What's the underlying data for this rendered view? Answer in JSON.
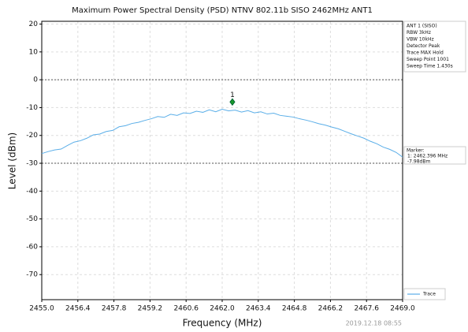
{
  "chart_data": {
    "type": "line",
    "title": "Maximum Power Spectral Density (PSD) NTNV 802.11b SISO 2462MHz ANT1",
    "x_label": "Frequency (MHz)",
    "y_label": "Level (dBm)",
    "xlim": [
      2455.0,
      2469.0
    ],
    "ylim": [
      -79,
      21
    ],
    "xticks": [
      {
        "value": 2455.0,
        "label": "2455.0"
      },
      {
        "value": 2456.4,
        "label": "2456.4"
      },
      {
        "value": 2457.8,
        "label": "2457.8"
      },
      {
        "value": 2459.2,
        "label": "2459.2"
      },
      {
        "value": 2460.6,
        "label": "2460.6"
      },
      {
        "value": 2462.0,
        "label": "2462.0"
      },
      {
        "value": 2463.4,
        "label": "2463.4"
      },
      {
        "value": 2464.8,
        "label": "2464.8"
      },
      {
        "value": 2466.2,
        "label": "2466.2"
      },
      {
        "value": 2467.6,
        "label": "2467.6"
      },
      {
        "value": 2469.0,
        "label": "2469.0"
      }
    ],
    "yticks": [
      20,
      10,
      0,
      -10,
      -20,
      -30,
      -40,
      -50,
      -60,
      -70
    ],
    "grid": true,
    "limit_lines": [
      0,
      -30
    ],
    "x": [
      2455,
      2455.25,
      2455.5,
      2455.75,
      2456,
      2456.25,
      2456.5,
      2456.75,
      2457,
      2457.25,
      2457.5,
      2457.75,
      2458,
      2458.25,
      2458.5,
      2458.75,
      2459,
      2459.25,
      2459.5,
      2459.75,
      2460,
      2460.25,
      2460.5,
      2460.75,
      2461,
      2461.25,
      2461.5,
      2461.75,
      2462,
      2462.25,
      2462.5,
      2462.75,
      2463,
      2463.25,
      2463.5,
      2463.75,
      2464,
      2464.25,
      2464.5,
      2464.75,
      2465,
      2465.25,
      2465.5,
      2465.75,
      2466,
      2466.25,
      2466.5,
      2466.75,
      2467,
      2467.25,
      2467.5,
      2467.75,
      2468,
      2468.25,
      2468.5,
      2468.75,
      2469
    ],
    "series": [
      {
        "name": "Trace",
        "color": "#5aaee8",
        "values": [
          -26.5,
          -25.8,
          -25.2,
          -24.9,
          -23.6,
          -22.4,
          -21.9,
          -21.0,
          -19.8,
          -19.5,
          -18.6,
          -18.2,
          -16.9,
          -16.5,
          -15.7,
          -15.3,
          -14.6,
          -14.0,
          -13.2,
          -13.5,
          -12.4,
          -12.8,
          -11.9,
          -12.1,
          -11.3,
          -11.7,
          -10.8,
          -11.5,
          -10.6,
          -11.2,
          -10.9,
          -11.6,
          -11.1,
          -11.9,
          -11.5,
          -12.3,
          -12.0,
          -12.8,
          -13.1,
          -13.4,
          -14.0,
          -14.5,
          -15.1,
          -15.8,
          -16.3,
          -17.0,
          -17.6,
          -18.5,
          -19.4,
          -20.2,
          -21.0,
          -22.1,
          -23.0,
          -24.2,
          -25.0,
          -26.1,
          -27.8
        ]
      }
    ],
    "marker": {
      "label": "1",
      "x": 2462.396,
      "y": -7.98,
      "text": [
        "Marker:",
        "1: 2462.396 MHz",
        "-7.98dBm"
      ]
    },
    "info": [
      "ANT 1 (SISO)",
      "RBW 3kHz",
      "VBW 10kHz",
      "Detector Peak",
      "Trace MAX Hold",
      "Sweep Point 1001",
      "Sweep Time 1.430s"
    ],
    "timestamp": "2019.12.18 08:55"
  }
}
